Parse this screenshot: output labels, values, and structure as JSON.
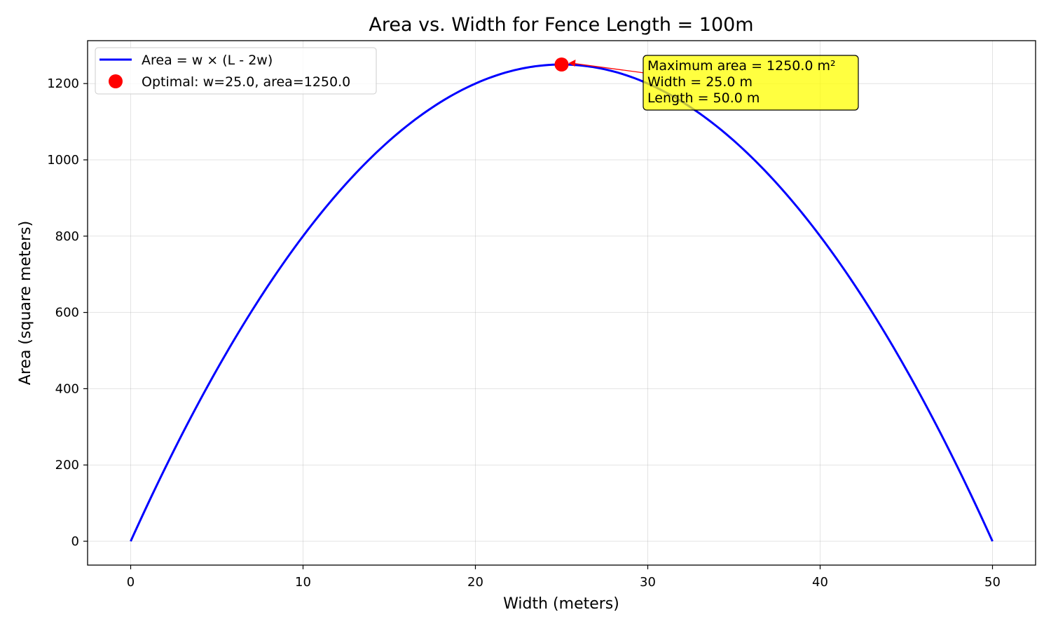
{
  "chart_data": {
    "type": "line",
    "title": "Area vs. Width for Fence Length = 100m",
    "xlabel": "Width (meters)",
    "ylabel": "Area (square meters)",
    "xlim": [
      -2.5,
      52.5
    ],
    "ylim": [
      -62.5,
      1312.5
    ],
    "x_ticks": [
      0,
      10,
      20,
      30,
      40,
      50
    ],
    "y_ticks": [
      0,
      200,
      400,
      600,
      800,
      1000,
      1200
    ],
    "grid": true,
    "legend_position": "top-left",
    "fence_length": 100,
    "series": [
      {
        "name": "Area = w × (L - 2w)",
        "color": "#0000ff",
        "x": [
          0,
          2.5,
          5,
          7.5,
          10,
          12.5,
          15,
          17.5,
          20,
          22.5,
          25,
          27.5,
          30,
          32.5,
          35,
          37.5,
          40,
          42.5,
          45,
          47.5,
          50
        ],
        "y": [
          0,
          237.5,
          450,
          637.5,
          800,
          937.5,
          1050,
          1137.5,
          1200,
          1237.5,
          1250,
          1237.5,
          1200,
          1137.5,
          1050,
          937.5,
          800,
          637.5,
          450,
          237.5,
          0
        ]
      }
    ],
    "optimal_point": {
      "label": "Optimal: w=25.0, area=1250.0",
      "x": 25,
      "y": 1250,
      "color": "#ff0000"
    },
    "annotation": {
      "lines": [
        "Maximum area = 1250.0 m²",
        "Width = 25.0 m",
        "Length = 50.0 m"
      ],
      "text_x": 30,
      "text_y": 1230,
      "box_color": "#ffff00",
      "arrow_color": "#ff0000"
    }
  }
}
